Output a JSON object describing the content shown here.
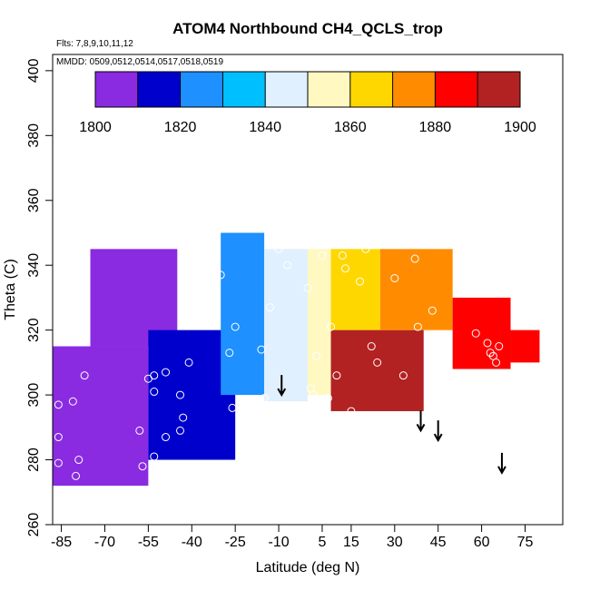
{
  "chart_data": {
    "type": "heatmap",
    "title": "ATOM4 Northbound CH4_QCLS_trop",
    "flights_note": "Flts: 7,8,9,10,11,12",
    "dates_note": "MMDD: 0509,0512,0514,0517,0518,0519",
    "xlabel": "Latitude (deg N)",
    "ylabel": "Theta (C)",
    "xlim": [
      -88,
      88
    ],
    "ylim": [
      260,
      405
    ],
    "x_ticks": [
      -85,
      -70,
      -55,
      -40,
      -25,
      -10,
      5,
      15,
      30,
      45,
      60,
      75
    ],
    "y_ticks": [
      260,
      280,
      300,
      320,
      340,
      360,
      380,
      400
    ],
    "colorbar": {
      "min": 1800,
      "max": 1900,
      "ticks": [
        1800,
        1820,
        1840,
        1860,
        1880,
        1900
      ],
      "colors": [
        "#8a2be2",
        "#0000cd",
        "#1e90ff",
        "#00bfff",
        "#e0f0ff",
        "#fff8c0",
        "#ffd700",
        "#ff8c00",
        "#ff0000",
        "#b22222"
      ]
    },
    "field_regions": [
      {
        "lat_range": [
          -88,
          -55
        ],
        "theta_range": [
          272,
          315
        ],
        "ch4": 1805
      },
      {
        "lat_range": [
          -75,
          -45
        ],
        "theta_range": [
          315,
          345
        ],
        "ch4": 1808
      },
      {
        "lat_range": [
          -55,
          -25
        ],
        "theta_range": [
          280,
          320
        ],
        "ch4": 1815
      },
      {
        "lat_range": [
          -30,
          -15
        ],
        "theta_range": [
          300,
          350
        ],
        "ch4": 1825
      },
      {
        "lat_range": [
          -15,
          0
        ],
        "theta_range": [
          298,
          345
        ],
        "ch4": 1842
      },
      {
        "lat_range": [
          0,
          8
        ],
        "theta_range": [
          300,
          345
        ],
        "ch4": 1852
      },
      {
        "lat_range": [
          8,
          25
        ],
        "theta_range": [
          320,
          345
        ],
        "ch4": 1868
      },
      {
        "lat_range": [
          8,
          40
        ],
        "theta_range": [
          295,
          320
        ],
        "ch4": 1892
      },
      {
        "lat_range": [
          25,
          50
        ],
        "theta_range": [
          320,
          345
        ],
        "ch4": 1878
      },
      {
        "lat_range": [
          50,
          70
        ],
        "theta_range": [
          308,
          330
        ],
        "ch4": 1882
      },
      {
        "lat_range": [
          70,
          80
        ],
        "theta_range": [
          310,
          320
        ],
        "ch4": 1880
      }
    ],
    "observations": [
      {
        "lat": -86,
        "theta": 297
      },
      {
        "lat": -86,
        "theta": 287
      },
      {
        "lat": -86,
        "theta": 279
      },
      {
        "lat": -81,
        "theta": 298
      },
      {
        "lat": -80,
        "theta": 275
      },
      {
        "lat": -79,
        "theta": 280
      },
      {
        "lat": -77,
        "theta": 306
      },
      {
        "lat": -58,
        "theta": 289
      },
      {
        "lat": -57,
        "theta": 278
      },
      {
        "lat": -55,
        "theta": 305
      },
      {
        "lat": -53,
        "theta": 306
      },
      {
        "lat": -53,
        "theta": 301
      },
      {
        "lat": -53,
        "theta": 281
      },
      {
        "lat": -53,
        "theta": 277
      },
      {
        "lat": -49,
        "theta": 307
      },
      {
        "lat": -49,
        "theta": 287
      },
      {
        "lat": -44,
        "theta": 300
      },
      {
        "lat": -44,
        "theta": 289
      },
      {
        "lat": -43,
        "theta": 293
      },
      {
        "lat": -41,
        "theta": 310
      },
      {
        "lat": -40,
        "theta": 336
      },
      {
        "lat": -33,
        "theta": 336
      },
      {
        "lat": -30,
        "theta": 337
      },
      {
        "lat": -27,
        "theta": 313
      },
      {
        "lat": -26,
        "theta": 296
      },
      {
        "lat": -25,
        "theta": 321
      },
      {
        "lat": -20,
        "theta": 296
      },
      {
        "lat": -16,
        "theta": 314
      },
      {
        "lat": -15,
        "theta": 299
      },
      {
        "lat": -13,
        "theta": 327
      },
      {
        "lat": -10,
        "theta": 345
      },
      {
        "lat": -7,
        "theta": 340
      },
      {
        "lat": 0,
        "theta": 333
      },
      {
        "lat": 1,
        "theta": 302
      },
      {
        "lat": 2,
        "theta": 300
      },
      {
        "lat": 3,
        "theta": 312
      },
      {
        "lat": 5,
        "theta": 343
      },
      {
        "lat": 7,
        "theta": 299
      },
      {
        "lat": 8,
        "theta": 321
      },
      {
        "lat": 10,
        "theta": 306
      },
      {
        "lat": 12,
        "theta": 343
      },
      {
        "lat": 13,
        "theta": 339
      },
      {
        "lat": 15,
        "theta": 295
      },
      {
        "lat": 18,
        "theta": 335
      },
      {
        "lat": 20,
        "theta": 345
      },
      {
        "lat": 22,
        "theta": 315
      },
      {
        "lat": 24,
        "theta": 310
      },
      {
        "lat": 30,
        "theta": 336
      },
      {
        "lat": 33,
        "theta": 306
      },
      {
        "lat": 37,
        "theta": 342
      },
      {
        "lat": 38,
        "theta": 321
      },
      {
        "lat": 43,
        "theta": 326
      },
      {
        "lat": 45,
        "theta": 317
      },
      {
        "lat": 58,
        "theta": 319
      },
      {
        "lat": 62,
        "theta": 316
      },
      {
        "lat": 63,
        "theta": 313
      },
      {
        "lat": 64,
        "theta": 312
      },
      {
        "lat": 65,
        "theta": 310
      },
      {
        "lat": 66,
        "theta": 315
      },
      {
        "lat": 67,
        "theta": 298
      },
      {
        "lat": 66,
        "theta": 306
      },
      {
        "lat": 74,
        "theta": 323
      }
    ],
    "arrows": [
      {
        "lat": -9,
        "theta": 300
      },
      {
        "lat": 39,
        "theta": 289
      },
      {
        "lat": 45,
        "theta": 286
      },
      {
        "lat": 67,
        "theta": 276
      }
    ]
  }
}
